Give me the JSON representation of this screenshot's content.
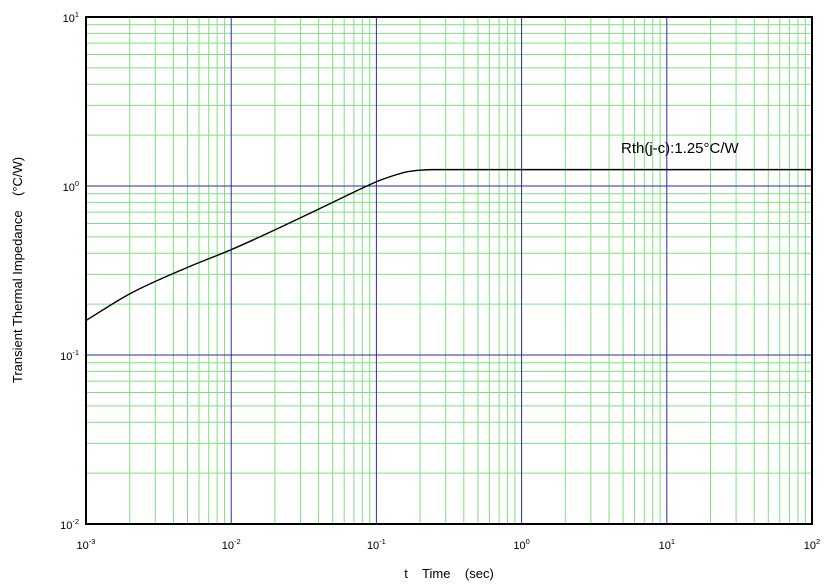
{
  "chart_data": {
    "type": "line",
    "x_scale": "log",
    "y_scale": "log",
    "xlim": [
      0.001,
      100
    ],
    "ylim": [
      0.01,
      10
    ],
    "grid": true,
    "xlabel": "t    Time    (sec)",
    "ylabel": "Transient Thermal Impedance    (°C/W)",
    "x_ticks": [
      {
        "base": "10",
        "exp": "-3"
      },
      {
        "base": "10",
        "exp": "-2"
      },
      {
        "base": "10",
        "exp": "-1"
      },
      {
        "base": "10",
        "exp": "0"
      },
      {
        "base": "10",
        "exp": "1"
      },
      {
        "base": "10",
        "exp": "2"
      }
    ],
    "y_ticks": [
      {
        "base": "10",
        "exp": "-2"
      },
      {
        "base": "10",
        "exp": "-1"
      },
      {
        "base": "10",
        "exp": "0"
      },
      {
        "base": "10",
        "exp": "1"
      }
    ],
    "annotation": "Rth(j-c):1.25°C/W",
    "series": [
      {
        "x": [
          0.001,
          0.002,
          0.005,
          0.01,
          0.02,
          0.05,
          0.07,
          0.1,
          0.13,
          0.16,
          0.2,
          0.25,
          0.3,
          0.5,
          1,
          10,
          100
        ],
        "y": [
          0.16,
          0.23,
          0.33,
          0.42,
          0.55,
          0.8,
          0.92,
          1.06,
          1.15,
          1.21,
          1.24,
          1.25,
          1.25,
          1.25,
          1.25,
          1.25,
          1.25
        ]
      }
    ],
    "colors": {
      "major_grid": "#2a2aa0",
      "minor_grid": "#7fe07f",
      "line": "#000000",
      "frame": "#000000"
    }
  }
}
